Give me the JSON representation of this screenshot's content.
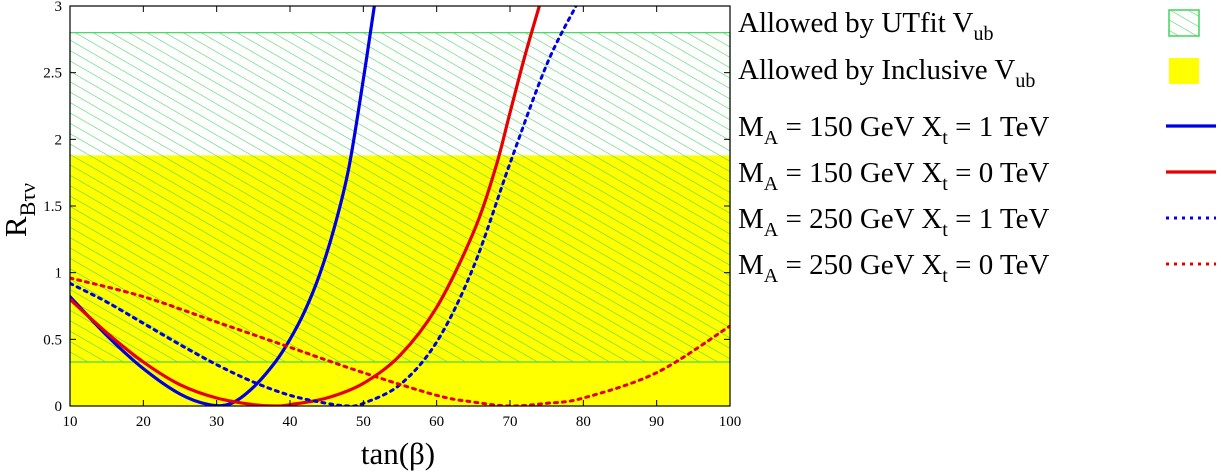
{
  "chart_data": {
    "type": "line",
    "xlabel": "tan(β)",
    "ylabel": "R",
    "ylabel_sub": "Bτν",
    "xlim": [
      10,
      100
    ],
    "ylim": [
      0,
      3
    ],
    "xticks": [
      10,
      20,
      30,
      40,
      50,
      60,
      70,
      80,
      90,
      100
    ],
    "yticks": [
      0,
      0.5,
      1,
      1.5,
      2,
      2.5,
      3
    ],
    "ytick_labels": [
      "0",
      "0.5",
      "1",
      "1.5",
      "2",
      "2.5",
      "3"
    ],
    "grid": false,
    "legend_position": "right",
    "bands": [
      {
        "name": "Allowed by UTfit V",
        "sub": "ub",
        "range": [
          0.33,
          2.8
        ],
        "style": "hatched",
        "color": "#3fd65a"
      },
      {
        "name": "Allowed by Inclusive V",
        "sub": "ub",
        "range": [
          0,
          1.88
        ],
        "style": "solid",
        "color": "#ffff00"
      }
    ],
    "series": [
      {
        "name_parts": [
          "M",
          "A",
          " = 150 GeV X",
          "t",
          " = 1 TeV"
        ],
        "color": "#0000e6",
        "dash": "solid",
        "x": [
          10,
          15,
          20,
          25,
          29,
          32,
          35,
          38,
          40,
          42,
          44,
          46,
          48,
          50,
          51.5
        ],
        "y": [
          0.82,
          0.53,
          0.28,
          0.09,
          0.01,
          0.02,
          0.14,
          0.33,
          0.5,
          0.71,
          0.98,
          1.33,
          1.78,
          2.45,
          3.0
        ]
      },
      {
        "name_parts": [
          "M",
          "A",
          " = 150 GeV X",
          "t",
          " = 0 TeV"
        ],
        "color": "#e60000",
        "dash": "solid",
        "x": [
          10,
          15,
          20,
          25,
          30,
          35,
          38,
          40,
          45,
          50,
          55,
          60,
          65,
          68,
          70,
          72,
          74
        ],
        "y": [
          0.8,
          0.55,
          0.33,
          0.16,
          0.06,
          0.01,
          0.0,
          0.01,
          0.06,
          0.17,
          0.38,
          0.74,
          1.3,
          1.78,
          2.2,
          2.62,
          3.0
        ]
      },
      {
        "name_parts": [
          "M",
          "A",
          " = 250 GeV X",
          "t",
          " = 1 TeV"
        ],
        "color": "#0000e6",
        "dash": "dotted",
        "x": [
          10,
          15,
          20,
          25,
          30,
          35,
          40,
          45,
          48,
          50,
          55,
          60,
          65,
          70,
          75,
          79
        ],
        "y": [
          0.92,
          0.78,
          0.62,
          0.46,
          0.31,
          0.18,
          0.08,
          0.02,
          0.0,
          0.02,
          0.16,
          0.48,
          1.04,
          1.82,
          2.56,
          3.0
        ]
      },
      {
        "name_parts": [
          "M",
          "A",
          " = 250 GeV X",
          "t",
          " = 0 TeV"
        ],
        "color": "#e60000",
        "dash": "dotted",
        "x": [
          10,
          20,
          30,
          40,
          50,
          60,
          65,
          70,
          75,
          80,
          90,
          100
        ],
        "y": [
          0.96,
          0.82,
          0.63,
          0.44,
          0.25,
          0.08,
          0.03,
          0.0,
          0.02,
          0.06,
          0.25,
          0.6
        ]
      }
    ]
  }
}
